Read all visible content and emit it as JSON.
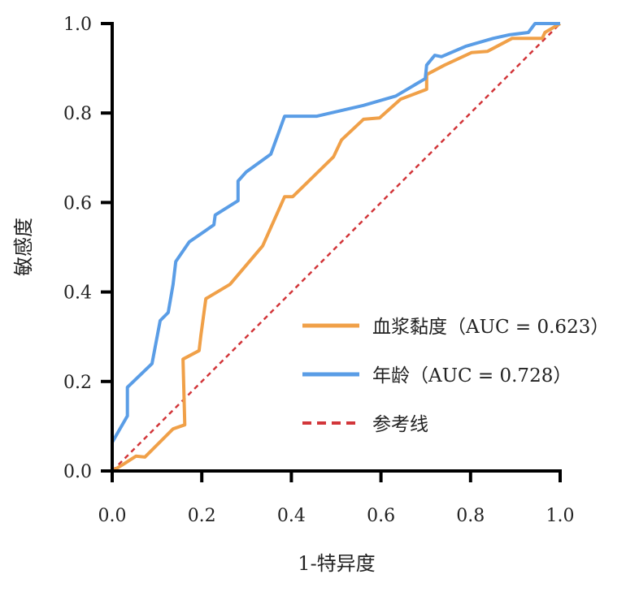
{
  "chart_data": {
    "type": "line",
    "title": "",
    "xlabel": "1-特异度",
    "ylabel": "敏感度",
    "xlim": [
      0,
      1
    ],
    "ylim": [
      0,
      1
    ],
    "xticks": [
      "0.0",
      "0.2",
      "0.4",
      "0.6",
      "0.8",
      "1.0"
    ],
    "yticks": [
      "0.0",
      "0.2",
      "0.4",
      "0.6",
      "0.8",
      "1.0"
    ],
    "grid": false,
    "legend_position": "bottom-right",
    "series": [
      {
        "name": "血浆黏度（AUC = 0.623）",
        "color": "#F0A048",
        "style": "solid",
        "points": [
          [
            0,
            0
          ],
          [
            0.022,
            0.013
          ],
          [
            0.053,
            0.033
          ],
          [
            0.073,
            0.031
          ],
          [
            0.136,
            0.094
          ],
          [
            0.162,
            0.103
          ],
          [
            0.158,
            0.25
          ],
          [
            0.194,
            0.269
          ],
          [
            0.198,
            0.303
          ],
          [
            0.209,
            0.385
          ],
          [
            0.263,
            0.417
          ],
          [
            0.336,
            0.503
          ],
          [
            0.385,
            0.613
          ],
          [
            0.403,
            0.613
          ],
          [
            0.494,
            0.702
          ],
          [
            0.512,
            0.74
          ],
          [
            0.561,
            0.786
          ],
          [
            0.597,
            0.789
          ],
          [
            0.644,
            0.831
          ],
          [
            0.702,
            0.853
          ],
          [
            0.702,
            0.886
          ],
          [
            0.742,
            0.907
          ],
          [
            0.802,
            0.935
          ],
          [
            0.838,
            0.938
          ],
          [
            0.893,
            0.967
          ],
          [
            0.96,
            0.967
          ],
          [
            0.966,
            0.98
          ],
          [
            1,
            1
          ]
        ]
      },
      {
        "name": "年龄（AUC = 0.728）",
        "color": "#5A9DE6",
        "style": "solid",
        "points": [
          [
            0,
            0
          ],
          [
            0,
            0.064
          ],
          [
            0.034,
            0.123
          ],
          [
            0.034,
            0.187
          ],
          [
            0.089,
            0.24
          ],
          [
            0.107,
            0.336
          ],
          [
            0.125,
            0.354
          ],
          [
            0.136,
            0.417
          ],
          [
            0.142,
            0.468
          ],
          [
            0.172,
            0.512
          ],
          [
            0.227,
            0.55
          ],
          [
            0.23,
            0.572
          ],
          [
            0.281,
            0.604
          ],
          [
            0.281,
            0.648
          ],
          [
            0.299,
            0.668
          ],
          [
            0.354,
            0.708
          ],
          [
            0.385,
            0.793
          ],
          [
            0.457,
            0.793
          ],
          [
            0.561,
            0.817
          ],
          [
            0.633,
            0.838
          ],
          [
            0.699,
            0.877
          ],
          [
            0.702,
            0.907
          ],
          [
            0.72,
            0.929
          ],
          [
            0.735,
            0.926
          ],
          [
            0.789,
            0.949
          ],
          [
            0.851,
            0.967
          ],
          [
            0.887,
            0.975
          ],
          [
            0.929,
            0.98
          ],
          [
            0.944,
            1
          ],
          [
            1,
            1
          ]
        ]
      },
      {
        "name": "参考线",
        "color": "#D2363A",
        "style": "dashed",
        "points": [
          [
            0,
            0
          ],
          [
            1,
            1
          ]
        ]
      }
    ]
  }
}
